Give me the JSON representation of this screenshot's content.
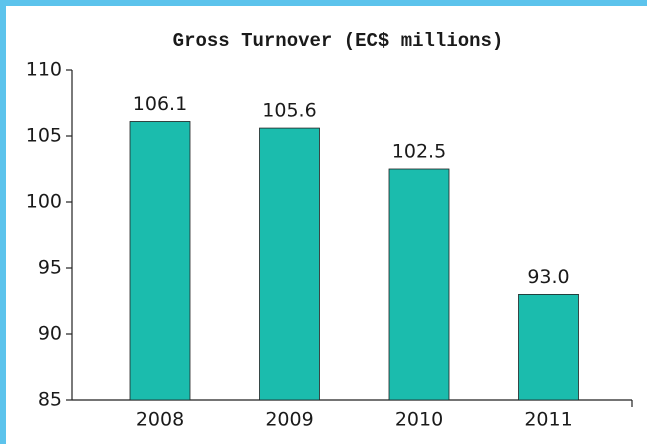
{
  "chart_data": {
    "type": "bar",
    "title": "Gross Turnover (EC$ millions)",
    "categories": [
      "2008",
      "2009",
      "2010",
      "2011"
    ],
    "values": [
      106.1,
      105.6,
      102.5,
      93.0
    ],
    "value_labels": [
      "106.1",
      "105.6",
      "102.5",
      "93.0"
    ],
    "color": "#1bbcad",
    "ylim": [
      85,
      110
    ],
    "yticks": [
      85,
      90,
      95,
      100,
      105,
      110
    ],
    "grid": false
  }
}
